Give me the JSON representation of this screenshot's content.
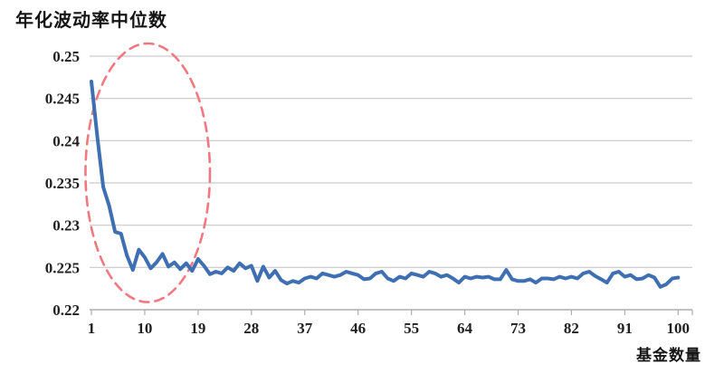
{
  "title": "年化波动率中位数",
  "x_axis_title": "基金数量",
  "colors": {
    "line": "#3E6FB2",
    "annotation": "#F27880",
    "gridline": "#c9c9c9",
    "axis": "#aeaeae",
    "text": "#1f1f1f",
    "background": "#ffffff"
  },
  "chart_data": {
    "type": "line",
    "title": "年化波动率中位数",
    "xlabel": "基金数量",
    "ylabel": "",
    "xlim": [
      1,
      100
    ],
    "ylim": [
      0.22,
      0.25
    ],
    "grid": "horizontal",
    "legend": "none",
    "x_tick_labels": [
      1,
      10,
      19,
      28,
      37,
      46,
      55,
      64,
      73,
      82,
      91,
      100
    ],
    "y_tick_labels": [
      "0.25",
      "0.245",
      "0.24",
      "0.235",
      "0.23",
      "0.225",
      "0.22"
    ],
    "series": [
      {
        "name": "年化波动率中位数",
        "x_start": 1,
        "x_step": 1,
        "values": [
          0.247,
          0.2405,
          0.2345,
          0.2323,
          0.2292,
          0.229,
          0.2264,
          0.2247,
          0.2271,
          0.2262,
          0.2249,
          0.2256,
          0.2266,
          0.2251,
          0.2256,
          0.2248,
          0.2255,
          0.2246,
          0.226,
          0.2252,
          0.2242,
          0.2245,
          0.2243,
          0.225,
          0.2246,
          0.2255,
          0.2249,
          0.2252,
          0.2234,
          0.2251,
          0.2238,
          0.2246,
          0.2235,
          0.2231,
          0.2234,
          0.2232,
          0.2237,
          0.2239,
          0.2237,
          0.2243,
          0.2241,
          0.2239,
          0.2241,
          0.2245,
          0.2243,
          0.2241,
          0.2236,
          0.2237,
          0.2243,
          0.2245,
          0.2237,
          0.2234,
          0.2239,
          0.2237,
          0.2243,
          0.2241,
          0.2239,
          0.2245,
          0.2243,
          0.2239,
          0.2241,
          0.2237,
          0.2232,
          0.2239,
          0.2237,
          0.2239,
          0.2238,
          0.2239,
          0.2236,
          0.2236,
          0.2247,
          0.2236,
          0.2234,
          0.2234,
          0.2236,
          0.2232,
          0.2237,
          0.2237,
          0.2236,
          0.2239,
          0.2237,
          0.2239,
          0.2237,
          0.2243,
          0.2245,
          0.224,
          0.2236,
          0.2232,
          0.2243,
          0.2245,
          0.2239,
          0.2241,
          0.2236,
          0.2237,
          0.2241,
          0.2238,
          0.2227,
          0.223,
          0.2237,
          0.2238
        ]
      }
    ],
    "annotation": {
      "shape": "dashed-ellipse",
      "x_center": 10.5,
      "x_radius": 10.5,
      "y_center": 0.2362,
      "y_radius": 0.0153,
      "meaning": "highlights steep volatility decline for small fund counts"
    }
  }
}
